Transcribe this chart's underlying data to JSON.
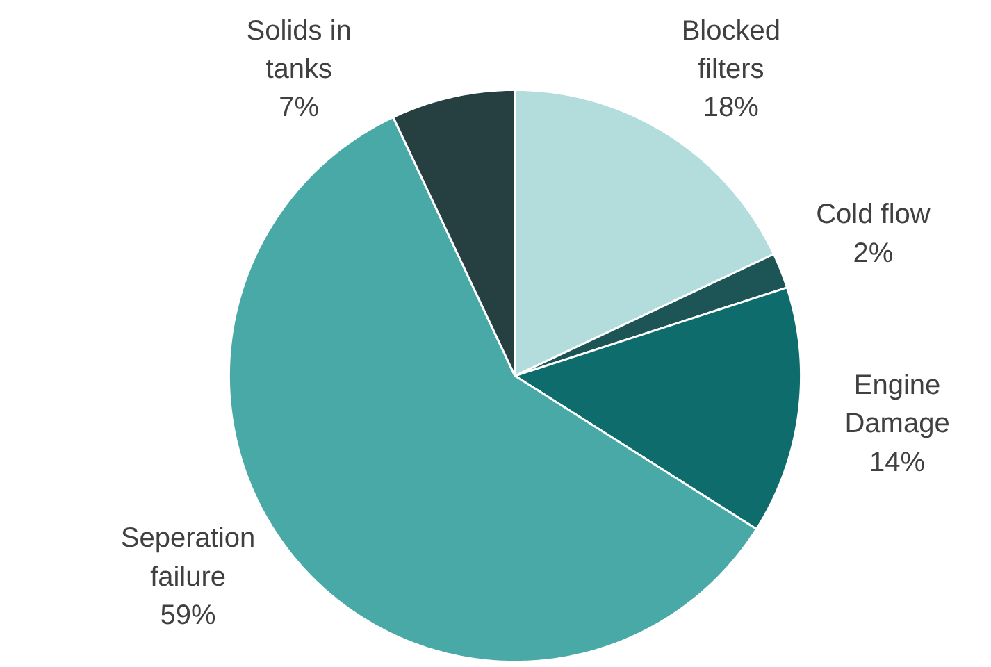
{
  "chart_data": {
    "type": "pie",
    "categories": [
      "Blocked\nfilters",
      "Cold flow",
      "Engine\nDamage",
      "Seperation\nfailure",
      "Solids in\ntanks"
    ],
    "values": [
      18,
      2,
      14,
      59,
      7
    ],
    "colors": [
      "#b3dcdc",
      "#1d5556",
      "#0e6d6c",
      "#49a9a6",
      "#263f41"
    ],
    "value_labels": [
      "18%",
      "2%",
      "14%",
      "59%",
      "7%"
    ]
  }
}
